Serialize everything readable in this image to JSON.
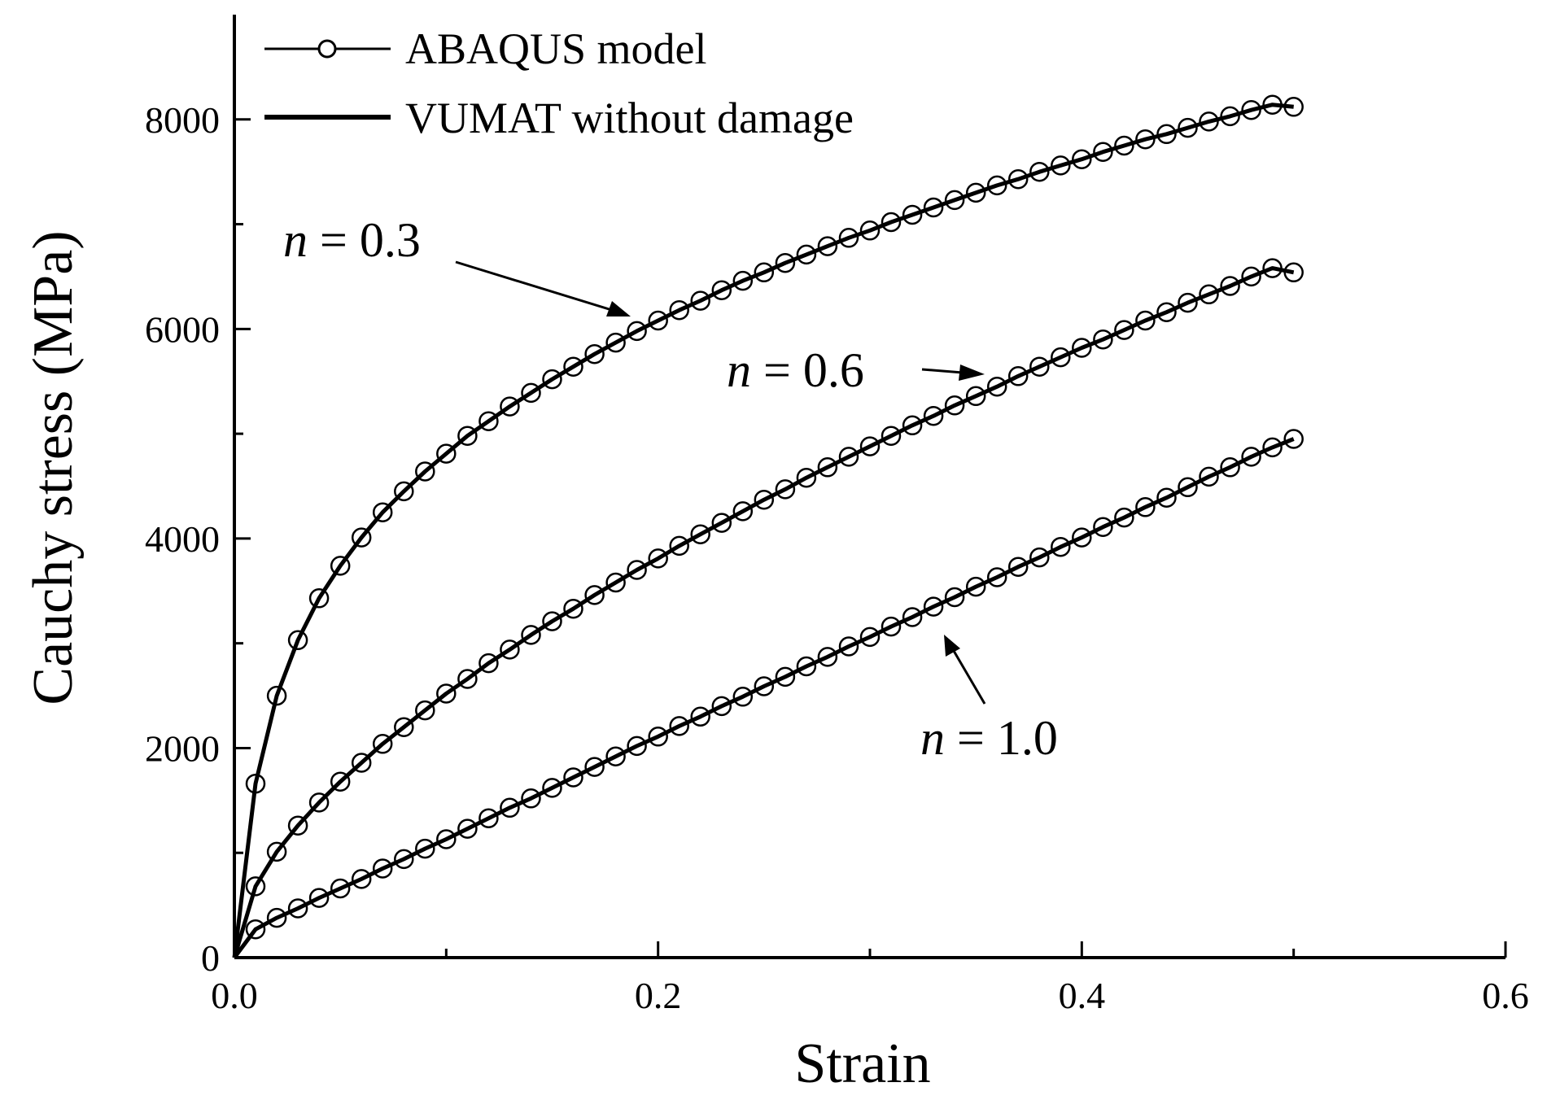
{
  "chart_data": {
    "type": "line",
    "title": "",
    "xlabel": "Strain",
    "ylabel": "Cauchy stress (MPa)",
    "xlim": [
      0,
      0.6
    ],
    "ylim": [
      0,
      9000
    ],
    "xticks": [
      0.0,
      0.2,
      0.4,
      0.6
    ],
    "xtick_labels": [
      "0.0",
      "0.2",
      "0.4",
      "0.6"
    ],
    "yticks": [
      0,
      2000,
      4000,
      6000,
      8000
    ],
    "ytick_labels": [
      "0",
      "2000",
      "4000",
      "6000",
      "8000"
    ],
    "grid": false,
    "legend": {
      "position": "top-left",
      "entries": [
        {
          "label": "ABAQUS model",
          "style": "line-with-circles"
        },
        {
          "label": "VUMAT without damage",
          "style": "thick-line"
        }
      ]
    },
    "series": [
      {
        "name": "n = 0.3",
        "x": [
          0,
          0.01,
          0.02,
          0.03,
          0.04,
          0.05,
          0.06,
          0.07,
          0.08,
          0.09,
          0.1,
          0.11,
          0.12,
          0.13,
          0.14,
          0.15,
          0.16,
          0.17,
          0.18,
          0.19,
          0.2,
          0.21,
          0.22,
          0.23,
          0.24,
          0.25,
          0.26,
          0.27,
          0.28,
          0.29,
          0.3,
          0.31,
          0.32,
          0.33,
          0.34,
          0.35,
          0.36,
          0.37,
          0.38,
          0.39,
          0.4,
          0.41,
          0.42,
          0.43,
          0.44,
          0.45,
          0.46,
          0.47,
          0.48,
          0.49,
          0.5
        ],
        "values": [
          0,
          1660,
          2500,
          3030,
          3430,
          3740,
          4010,
          4250,
          4450,
          4640,
          4810,
          4980,
          5120,
          5260,
          5390,
          5520,
          5640,
          5760,
          5870,
          5980,
          6080,
          6180,
          6270,
          6370,
          6460,
          6540,
          6630,
          6710,
          6790,
          6870,
          6940,
          7020,
          7090,
          7160,
          7230,
          7300,
          7370,
          7430,
          7500,
          7560,
          7620,
          7690,
          7750,
          7810,
          7860,
          7920,
          7980,
          8030,
          8090,
          8140,
          8120
        ]
      },
      {
        "name": "n = 0.6",
        "x": [
          0,
          0.01,
          0.02,
          0.03,
          0.04,
          0.05,
          0.06,
          0.07,
          0.08,
          0.09,
          0.1,
          0.11,
          0.12,
          0.13,
          0.14,
          0.15,
          0.16,
          0.17,
          0.18,
          0.19,
          0.2,
          0.21,
          0.22,
          0.23,
          0.24,
          0.25,
          0.26,
          0.27,
          0.28,
          0.29,
          0.3,
          0.31,
          0.32,
          0.33,
          0.34,
          0.35,
          0.36,
          0.37,
          0.38,
          0.39,
          0.4,
          0.41,
          0.42,
          0.43,
          0.44,
          0.45,
          0.46,
          0.47,
          0.48,
          0.49,
          0.5
        ],
        "values": [
          0,
          680,
          1010,
          1260,
          1480,
          1680,
          1860,
          2040,
          2200,
          2360,
          2520,
          2660,
          2810,
          2940,
          3080,
          3210,
          3330,
          3460,
          3580,
          3700,
          3810,
          3930,
          4040,
          4150,
          4260,
          4370,
          4470,
          4580,
          4680,
          4780,
          4880,
          4980,
          5080,
          5170,
          5270,
          5360,
          5450,
          5550,
          5640,
          5730,
          5820,
          5900,
          5990,
          6080,
          6160,
          6250,
          6330,
          6410,
          6500,
          6580,
          6540
        ]
      },
      {
        "name": "n = 1.0",
        "x": [
          0,
          0.01,
          0.02,
          0.03,
          0.04,
          0.05,
          0.06,
          0.07,
          0.08,
          0.09,
          0.1,
          0.11,
          0.12,
          0.13,
          0.14,
          0.15,
          0.16,
          0.17,
          0.18,
          0.19,
          0.2,
          0.21,
          0.22,
          0.23,
          0.24,
          0.25,
          0.26,
          0.27,
          0.28,
          0.29,
          0.3,
          0.31,
          0.32,
          0.33,
          0.34,
          0.35,
          0.36,
          0.37,
          0.38,
          0.39,
          0.4,
          0.41,
          0.42,
          0.43,
          0.44,
          0.45,
          0.46,
          0.47,
          0.48,
          0.49,
          0.5
        ],
        "values": [
          0,
          270,
          380,
          470,
          570,
          660,
          750,
          850,
          940,
          1040,
          1130,
          1230,
          1330,
          1430,
          1520,
          1620,
          1720,
          1820,
          1920,
          2020,
          2110,
          2210,
          2300,
          2400,
          2490,
          2590,
          2680,
          2780,
          2870,
          2970,
          3060,
          3160,
          3250,
          3350,
          3440,
          3540,
          3630,
          3730,
          3820,
          3920,
          4010,
          4110,
          4200,
          4300,
          4390,
          4490,
          4590,
          4680,
          4780,
          4870,
          4950
        ]
      }
    ],
    "annotations": [
      {
        "var": "n",
        "rest": " = 0.3",
        "points_to": [
          0.19,
          5980
        ]
      },
      {
        "var": "n",
        "rest": " = 0.6",
        "points_to": [
          0.355,
          5540
        ]
      },
      {
        "var": "n",
        "rest": " = 1.0",
        "points_to": [
          0.33,
          3250
        ]
      }
    ]
  }
}
